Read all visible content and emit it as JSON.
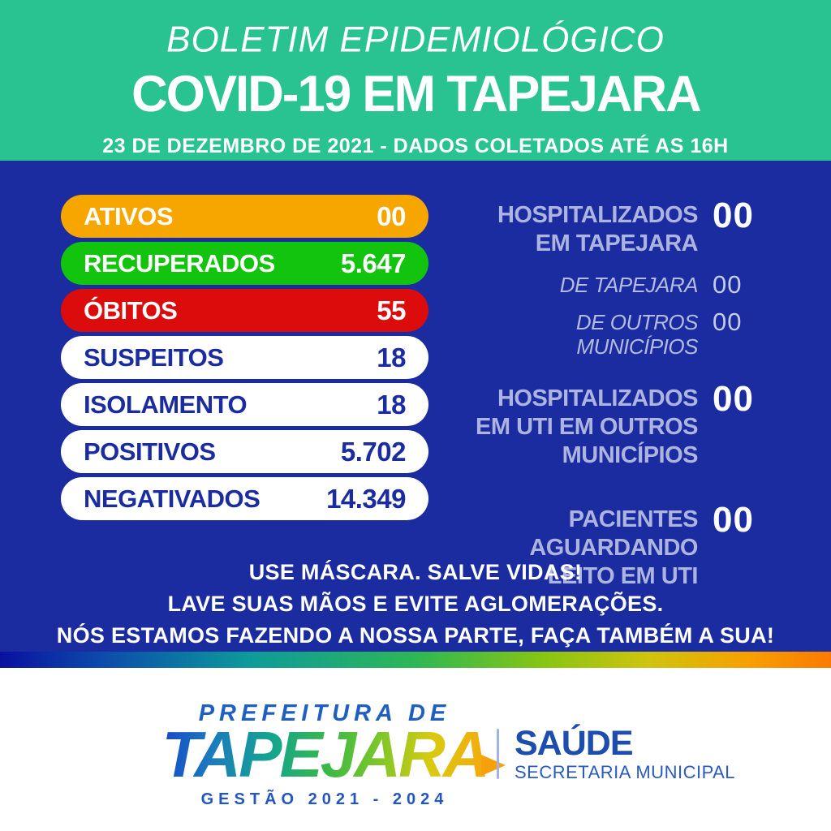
{
  "header": {
    "subtitle": "BOLETIM EPIDEMIOLÓGICO",
    "title": "COVID-19 EM TAPEJARA",
    "date_line": "23 DE DEZEMBRO DE 2021 - DADOS COLETADOS ATÉ AS 16H"
  },
  "stats_pills": [
    {
      "label": "ATIVOS",
      "value": "00",
      "bg_color": "#F7A600",
      "text_color": "#FFFFFF"
    },
    {
      "label": "RECUPERADOS",
      "value": "5.647",
      "bg_color": "#12C40E",
      "text_color": "#FFFFFF"
    },
    {
      "label": "ÓBITOS",
      "value": "55",
      "bg_color": "#DC0C0C",
      "text_color": "#FFFFFF"
    },
    {
      "label": "SUSPEITOS",
      "value": "18",
      "bg_color": "#FFFFFF",
      "text_color": "#1B2CA0"
    },
    {
      "label": "ISOLAMENTO",
      "value": "18",
      "bg_color": "#FFFFFF",
      "text_color": "#1B2CA0"
    },
    {
      "label": "POSITIVOS",
      "value": "5.702",
      "bg_color": "#FFFFFF",
      "text_color": "#1B2CA0"
    },
    {
      "label": "NEGATIVADOS",
      "value": "14.349",
      "bg_color": "#FFFFFF",
      "text_color": "#1B2CA0"
    }
  ],
  "hospital_panel": {
    "rows": [
      {
        "type": "main",
        "lines": [
          "HOSPITALIZADOS",
          "EM TAPEJARA"
        ],
        "value": "00"
      },
      {
        "type": "sub",
        "label": "DE TAPEJARA",
        "value": "00"
      },
      {
        "type": "sub",
        "label": "DE OUTROS MUNICÍPIOS",
        "value": "00"
      },
      {
        "type": "main",
        "lines": [
          "HOSPITALIZADOS",
          "EM UTI EM OUTROS",
          "MUNICÍPIOS"
        ],
        "value": "00"
      },
      {
        "type": "main",
        "lines": [
          "PACIENTES",
          "AGUARDANDO",
          "LEITO EM UTI"
        ],
        "value": "00"
      }
    ]
  },
  "messages": {
    "lines": [
      "USE MÁSCARA. SALVE VIDAS!",
      "LAVE SUAS MÃOS E EVITE AGLOMERAÇÕES.",
      "NÓS ESTAMOS FAZENDO A NOSSA PARTE, FAÇA TAMBÉM A SUA!"
    ]
  },
  "footer": {
    "prefeitura": "PREFEITURA DE",
    "city": "TAPEJARA",
    "gestao": "GESTÃO 2021 - 2024",
    "dept": "SAÚDE",
    "dept_sub": "SECRETARIA MUNICIPAL"
  },
  "colors": {
    "header_bg": "#29C392",
    "panel_bg": "#1B2CA0",
    "pill_orange": "#F7A600",
    "pill_green": "#12C40E",
    "pill_red": "#DC0C0C",
    "label_lavender": "#ACB4DF",
    "footer_blue": "#1E5FC0",
    "rainbow": [
      "#0A11A0",
      "#0C4AAB",
      "#0D9B9B",
      "#2EB755",
      "#84C513",
      "#CFC40E",
      "#F7A000",
      "#FA7A00"
    ]
  }
}
